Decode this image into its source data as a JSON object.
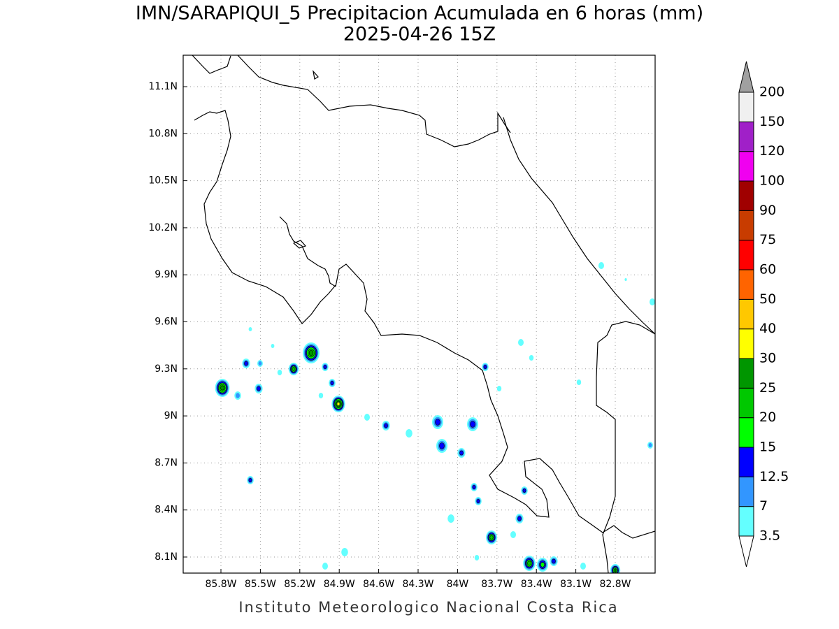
{
  "map": {
    "title": "IMN/SARAPIQUI_5 Precipitacion Acumulada en 6 horas (mm)",
    "subtitle": "2025-04-26 15Z",
    "xticks": [
      "85.8W",
      "85.5W",
      "85.2W",
      "84.9W",
      "84.6W",
      "84.3W",
      "84W",
      "83.7W",
      "83.4W",
      "83.1W",
      "82.8W"
    ],
    "yticks": [
      "11.1N",
      "10.8N",
      "10.5N",
      "10.2N",
      "9.9N",
      "9.6N",
      "9.3N",
      "9N",
      "8.7N",
      "8.4N",
      "8.1N"
    ],
    "legend": {
      "levels": [
        3.5,
        7,
        12.5,
        15,
        20,
        25,
        30,
        40,
        50,
        60,
        75,
        90,
        100,
        120,
        150,
        200
      ],
      "colors": [
        "#64ffff",
        "#3296ff",
        "#0000ff",
        "#00ff00",
        "#00c800",
        "#009600",
        "#ffff00",
        "#ffc800",
        "#ff6400",
        "#ff0000",
        "#c83c00",
        "#a00000",
        "#f000f0",
        "#a020c8",
        "#f0f0f0"
      ],
      "under_color": "#ffffff",
      "over_color": "#a0a0a0"
    },
    "footer": "Instituto Meteorologico Nacional Costa Rica"
  }
}
